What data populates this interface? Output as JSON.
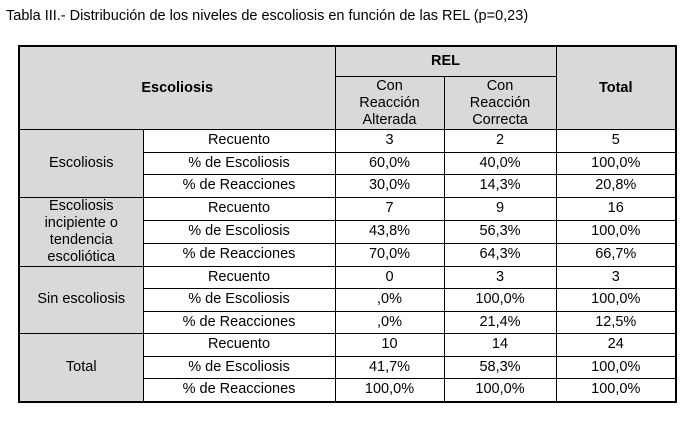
{
  "caption": "Tabla III.- Distribución de los niveles de escoliosis en función de las REL (p=0,23)",
  "header": {
    "corner": "Escoliosis",
    "group": "REL",
    "col1": [
      "Con",
      "Reacción",
      "Alterada"
    ],
    "col2": [
      "Con",
      "Reacción",
      "Correcta"
    ],
    "total": "Total"
  },
  "groups": [
    {
      "label": [
        "Escoliosis"
      ],
      "rows": [
        {
          "measure": "Recuento",
          "v1": "3",
          "v2": "2",
          "total": "5"
        },
        {
          "measure": "% de Escoliosis",
          "v1": "60,0%",
          "v2": "40,0%",
          "total": "100,0%"
        },
        {
          "measure": "% de Reacciones",
          "v1": "30,0%",
          "v2": "14,3%",
          "total": "20,8%"
        }
      ]
    },
    {
      "label": [
        "Escoliosis",
        "incipiente o",
        "tendencia",
        "escoliótica"
      ],
      "rows": [
        {
          "measure": "Recuento",
          "v1": "7",
          "v2": "9",
          "total": "16"
        },
        {
          "measure": "% de Escoliosis",
          "v1": "43,8%",
          "v2": "56,3%",
          "total": "100,0%"
        },
        {
          "measure": "% de Reacciones",
          "v1": "70,0%",
          "v2": "64,3%",
          "total": "66,7%"
        }
      ]
    },
    {
      "label": [
        "Sin escoliosis"
      ],
      "rows": [
        {
          "measure": "Recuento",
          "v1": "0",
          "v2": "3",
          "total": "3"
        },
        {
          "measure": "% de Escoliosis",
          "v1": ",0%",
          "v2": "100,0%",
          "total": "100,0%"
        },
        {
          "measure": "% de Reacciones",
          "v1": ",0%",
          "v2": "21,4%",
          "total": "12,5%"
        }
      ]
    },
    {
      "label": [
        "Total"
      ],
      "rows": [
        {
          "measure": "Recuento",
          "v1": "10",
          "v2": "14",
          "total": "24"
        },
        {
          "measure": "% de Escoliosis",
          "v1": "41,7%",
          "v2": "58,3%",
          "total": "100,0%"
        },
        {
          "measure": "% de Reacciones",
          "v1": "100,0%",
          "v2": "100,0%",
          "total": "100,0%"
        }
      ]
    }
  ]
}
